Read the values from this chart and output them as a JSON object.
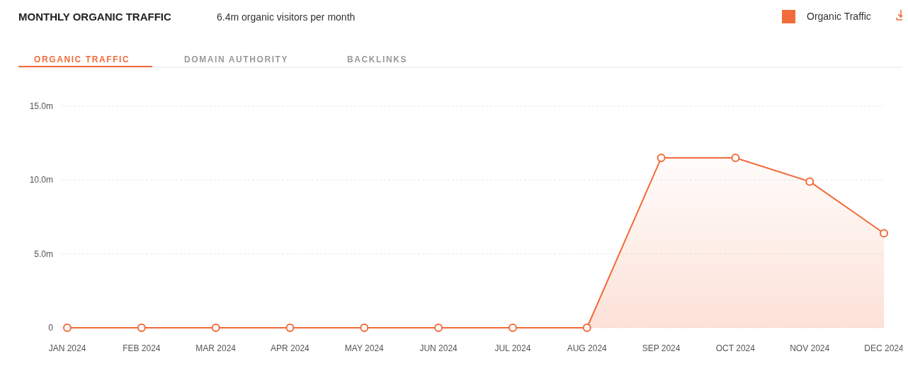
{
  "chart_data": {
    "type": "area",
    "title": "MONTHLY ORGANIC TRAFFIC",
    "subtitle": "6.4m organic visitors per month",
    "annotations": [
      "ORGANIC TRAFFIC",
      "DOMAIN AUTHORITY",
      "BACKLINKS"
    ],
    "categories": [
      "JAN 2024",
      "FEB 2024",
      "MAR 2024",
      "APR 2024",
      "MAY 2024",
      "JUN 2024",
      "JUL 2024",
      "AUG 2024",
      "SEP 2024",
      "OCT 2024",
      "NOV 2024",
      "DEC 2024"
    ],
    "series": [
      {
        "name": "Organic Traffic",
        "color": "#f26b3a",
        "values": [
          0,
          0,
          0,
          0,
          0,
          0,
          0,
          0,
          11.5,
          11.5,
          9.9,
          6.4
        ]
      }
    ],
    "ylim": [
      0,
      15
    ],
    "yticks": [
      {
        "value": 0,
        "label": "0"
      },
      {
        "value": 5,
        "label": "5.0m"
      },
      {
        "value": 10,
        "label": "10.0m"
      },
      {
        "value": 15,
        "label": "15.0m"
      }
    ],
    "grid": "y",
    "legend": "top right",
    "marker": "circle"
  }
}
